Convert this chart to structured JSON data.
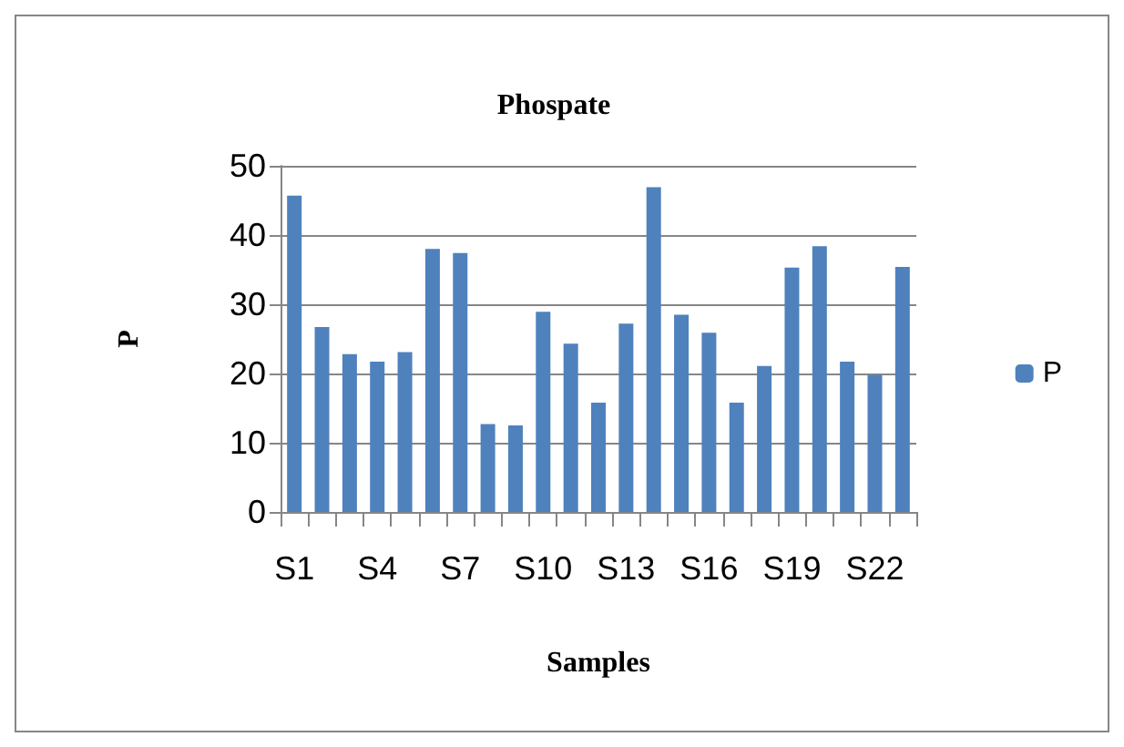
{
  "chart_data": {
    "type": "bar",
    "title": "Phospate",
    "xlabel": "Samples",
    "ylabel": "P",
    "categories": [
      "S1",
      null,
      null,
      "S4",
      null,
      null,
      "S7",
      null,
      null,
      "S10",
      null,
      null,
      "S13",
      null,
      null,
      "S16",
      null,
      null,
      "S19",
      null,
      null,
      "S22",
      null
    ],
    "series": [
      {
        "name": "P",
        "color": "#4f81bd",
        "values": [
          45.7,
          26.7,
          22.8,
          21.7,
          23.1,
          38.0,
          37.4,
          12.7,
          12.5,
          28.9,
          24.3,
          15.8,
          27.2,
          46.9,
          28.5,
          25.9,
          15.8,
          21.1,
          35.3,
          38.4,
          21.7,
          19.8,
          35.4
        ]
      }
    ],
    "ylim": [
      0,
      50
    ],
    "yticks": [
      0,
      10,
      20,
      30,
      40,
      50
    ],
    "grid": "y",
    "legend": "right"
  }
}
